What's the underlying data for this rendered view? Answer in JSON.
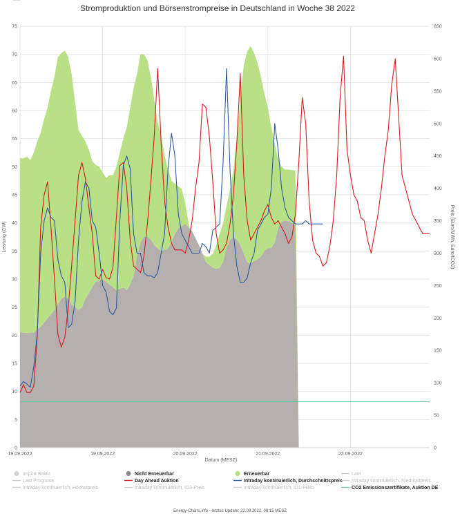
{
  "chart_data": {
    "type": "area",
    "title": "Stromproduktion und Börsenstrompreise in Deutschland in Woche 38 2022",
    "xlabel": "Datum (MESZ)",
    "ylabel_left": "Leistung (GW)",
    "ylabel_right": "Preis (Euro/MWh, Euro/tCO2)",
    "ylim_left": [
      0,
      75
    ],
    "ylim_right": [
      0,
      650
    ],
    "x_tick_labels": [
      "19.09.2022",
      "19.09.2022",
      "20.09.2022",
      "21.09.2022",
      "22.09.2022"
    ],
    "x_tick_hours": [
      0,
      24,
      48,
      72,
      96
    ],
    "y_left_ticks": [
      0,
      5,
      10,
      15,
      20,
      25,
      30,
      35,
      40,
      45,
      50,
      55,
      60,
      65,
      70,
      75
    ],
    "y_right_ticks": [
      0,
      50,
      100,
      150,
      200,
      250,
      300,
      350,
      400,
      450,
      500,
      550,
      600,
      650
    ],
    "x_range_hours": [
      0,
      119
    ],
    "legend_position": "bottom",
    "grid": true,
    "series": [
      {
        "name": "Nicht Erneuerbar",
        "kind": "area-stacked",
        "axis": "left",
        "color": "#b5afae",
        "x": [
          0,
          2,
          4,
          6,
          8,
          10,
          11,
          12,
          13,
          14,
          15,
          16,
          17,
          18,
          19,
          20,
          22,
          24,
          26,
          28,
          30,
          31,
          32,
          33,
          34,
          35,
          36,
          37,
          38,
          39,
          40,
          41,
          42,
          43,
          44,
          45,
          46,
          48,
          50,
          52,
          54,
          56,
          57,
          58,
          59,
          60,
          61,
          62,
          63,
          64,
          65,
          66,
          67,
          68,
          69,
          70,
          71,
          72,
          73,
          74,
          75,
          76,
          77,
          78,
          79,
          80,
          81,
          82,
          83,
          84,
          85,
          86,
          87,
          88,
          89
        ],
        "values": [
          20.5,
          20.4,
          20.5,
          21.5,
          23,
          24.5,
          25.5,
          26.5,
          26.8,
          26.5,
          25.5,
          25,
          24.5,
          25,
          26.5,
          27.5,
          29.5,
          30,
          29,
          28,
          28.5,
          28,
          29,
          30.5,
          34,
          36.5,
          37.5,
          37.5,
          37,
          36,
          35.5,
          35,
          35.2,
          35.5,
          36.5,
          38,
          39,
          39.8,
          38.5,
          36,
          33,
          32,
          31.8,
          32,
          33,
          35.5,
          37,
          37.5,
          37,
          36,
          34.5,
          33,
          32.8,
          33.2,
          33.5,
          34,
          35,
          35.5,
          35.5,
          36.5,
          39,
          40.2,
          40.4,
          40.3,
          40,
          39.5,
          0,
          0,
          0,
          0,
          0,
          0,
          0,
          0,
          0
        ],
        "value_note": "extends to x=88 then drops to 0 (forecast gap)"
      },
      {
        "name": "Erneuerbar",
        "kind": "area-stacked-top",
        "axis": "left",
        "color": "#b8e186",
        "x": [
          0,
          1,
          2,
          3,
          4,
          5,
          6,
          7,
          8,
          9,
          10,
          11,
          12,
          13,
          14,
          15,
          16,
          17,
          18,
          19,
          20,
          21,
          22,
          23,
          24,
          25,
          26,
          27,
          28,
          29,
          30,
          31,
          32,
          33,
          34,
          35,
          36,
          37,
          38,
          39,
          40,
          41,
          42,
          43,
          44,
          45,
          46,
          47,
          48,
          49,
          50,
          51,
          52,
          53,
          54,
          55,
          56,
          57,
          58,
          59,
          60,
          61,
          62,
          63,
          64,
          65,
          66,
          67,
          68,
          69,
          70,
          71,
          72,
          73,
          74,
          75,
          76,
          77,
          78,
          79,
          80,
          81,
          82,
          83,
          84,
          85,
          86,
          87,
          88,
          89
        ],
        "values": [
          51.5,
          51.5,
          51.8,
          51.2,
          52.5,
          54.5,
          56,
          58.5,
          60.5,
          63.5,
          66,
          69.5,
          70.2,
          70.7,
          69.5,
          66.5,
          61.5,
          56.5,
          55.5,
          54.5,
          53,
          51,
          50.3,
          50,
          49,
          48,
          48.5,
          48.5,
          50,
          52.5,
          55,
          57,
          60.5,
          64,
          66.5,
          70,
          70,
          69,
          66,
          62,
          58,
          55.5,
          52,
          49.5,
          47.5,
          47,
          46.5,
          46,
          43.5,
          40,
          37,
          35.5,
          35,
          34.5,
          34,
          34,
          34.5,
          36,
          38,
          40,
          43,
          46,
          49.5,
          55,
          62,
          68,
          70.5,
          71.5,
          70.2,
          68.5,
          66,
          63,
          60.5,
          57,
          54,
          51.5,
          50,
          49.5,
          49.5,
          49.4,
          49.3,
          0,
          0,
          0,
          0,
          0,
          0,
          0,
          0,
          0
        ]
      },
      {
        "name": "Day Ahead Auktion",
        "kind": "line",
        "axis": "right",
        "color": "#d7191c",
        "x": [
          0,
          1,
          2,
          3,
          4,
          5,
          6,
          7,
          8,
          9,
          10,
          11,
          12,
          13,
          14,
          15,
          16,
          17,
          18,
          19,
          20,
          21,
          22,
          23,
          24,
          25,
          26,
          27,
          28,
          29,
          30,
          31,
          32,
          33,
          34,
          35,
          36,
          37,
          38,
          39,
          40,
          41,
          42,
          43,
          44,
          45,
          46,
          47,
          48,
          49,
          50,
          51,
          52,
          53,
          54,
          55,
          56,
          57,
          58,
          59,
          60,
          61,
          62,
          63,
          64,
          65,
          66,
          67,
          68,
          69,
          70,
          71,
          72,
          73,
          74,
          75,
          76,
          77,
          78,
          79,
          80,
          81,
          82,
          83,
          84,
          85,
          86,
          87,
          88,
          89,
          90,
          91,
          92,
          93,
          94,
          95,
          96,
          97,
          98,
          99,
          100,
          101,
          102,
          103,
          104,
          105,
          106,
          107,
          108,
          109,
          110,
          111,
          112,
          113,
          114,
          115,
          116,
          117,
          118,
          119
        ],
        "values": [
          85,
          97,
          85,
          85,
          95,
          170,
          340,
          390,
          410,
          340,
          260,
          175,
          155,
          170,
          215,
          280,
          350,
          420,
          440,
          415,
          370,
          330,
          265,
          260,
          275,
          262,
          260,
          278,
          355,
          435,
          440,
          400,
          320,
          280,
          275,
          270,
          295,
          345,
          410,
          480,
          585,
          470,
          380,
          340,
          315,
          305,
          305,
          305,
          300,
          320,
          350,
          400,
          440,
          530,
          525,
          480,
          410,
          330,
          300,
          305,
          315,
          345,
          390,
          470,
          577,
          420,
          350,
          320,
          330,
          340,
          350,
          365,
          375,
          355,
          345,
          350,
          340,
          330,
          315,
          325,
          360,
          440,
          540,
          500,
          380,
          320,
          300,
          295,
          280,
          285,
          310,
          350,
          420,
          540,
          604,
          460,
          420,
          390,
          380,
          355,
          350,
          320,
          300,
          330,
          360,
          400,
          450,
          490,
          560,
          600,
          510,
          420,
          400,
          380,
          360,
          350,
          340,
          330,
          330,
          330
        ],
        "value_note": "hourly approximation read from chart"
      },
      {
        "name": "Intraday kontinuierlich, Durchschnittspreis",
        "kind": "line",
        "axis": "right",
        "color": "#2c5aa0",
        "x": [
          0,
          1,
          2,
          3,
          4,
          5,
          6,
          7,
          8,
          9,
          10,
          11,
          12,
          13,
          14,
          15,
          16,
          17,
          18,
          19,
          20,
          21,
          22,
          23,
          24,
          25,
          26,
          27,
          28,
          29,
          30,
          31,
          32,
          33,
          34,
          35,
          36,
          37,
          38,
          39,
          40,
          41,
          42,
          43,
          44,
          45,
          46,
          47,
          48,
          49,
          50,
          51,
          52,
          53,
          54,
          55,
          56,
          57,
          58,
          59,
          60,
          61,
          62,
          63,
          64,
          65,
          66,
          67,
          68,
          69,
          70,
          71,
          72,
          73,
          74,
          75,
          76,
          77,
          78,
          79,
          80,
          81,
          82,
          83,
          84,
          85,
          86,
          87,
          88
        ],
        "values": [
          95,
          102,
          98,
          93,
          125,
          175,
          300,
          350,
          370,
          355,
          350,
          290,
          265,
          255,
          185,
          190,
          225,
          320,
          380,
          410,
          400,
          350,
          340,
          300,
          250,
          240,
          210,
          205,
          215,
          350,
          435,
          450,
          430,
          330,
          300,
          300,
          270,
          265,
          265,
          262,
          270,
          300,
          330,
          430,
          485,
          450,
          360,
          330,
          320,
          310,
          300,
          300,
          300,
          315,
          310,
          300,
          335,
          340,
          345,
          440,
          585,
          430,
          330,
          280,
          255,
          255,
          262,
          285,
          300,
          335,
          345,
          355,
          360,
          400,
          500,
          460,
          400,
          370,
          355,
          350,
          345,
          345,
          345,
          350,
          345,
          345,
          345,
          345,
          345
        ]
      },
      {
        "name": "CO2 Emissionszertifikate, Auktion DE",
        "kind": "line",
        "axis": "right",
        "color": "#66c2a5",
        "x": [
          0,
          119
        ],
        "values": [
          71,
          71
        ]
      }
    ],
    "legend_entries": [
      {
        "label": "Import Saldo",
        "kind": "dot",
        "color": "#d0d0d0",
        "active": false
      },
      {
        "label": "Nicht Erneuerbar",
        "kind": "dot",
        "color": "#8c8c8c",
        "active": true
      },
      {
        "label": "Erneuerbar",
        "kind": "dot",
        "color": "#b8e186",
        "active": true
      },
      {
        "label": "Last",
        "kind": "line",
        "color": "#cccccc",
        "active": false
      },
      {
        "label": "Last Prognose",
        "kind": "line",
        "color": "#cccccc",
        "active": false
      },
      {
        "label": "Day Ahead Auktion",
        "kind": "line",
        "color": "#d7191c",
        "active": true
      },
      {
        "label": "Intraday kontinuierlich, Durchschnittspreis",
        "kind": "line",
        "color": "#2c5aa0",
        "active": true
      },
      {
        "label": "Intraday kontinuierlich, Niedrigstpreis",
        "kind": "line",
        "color": "#cccccc",
        "active": false
      },
      {
        "label": "Intraday kontinuierlich, Höchstpreis",
        "kind": "line",
        "color": "#cccccc",
        "active": false
      },
      {
        "label": "Intraday kontinuierlich, ID3-Preis",
        "kind": "line",
        "color": "#cccccc",
        "active": false
      },
      {
        "label": "Intraday kontinuierlich, ID1-Preis",
        "kind": "line",
        "color": "#cccccc",
        "active": false
      },
      {
        "label": "CO2 Emissionszertifikate, Auktion DE",
        "kind": "line",
        "color": "#66c2a5",
        "active": true
      },
      {
        "label": "CO2 Emissionszertifikate, Auktion EU",
        "kind": "line",
        "color": "#cccccc",
        "active": false
      }
    ],
    "footer": "Energy-Charts.info - letztes Update: 22.09.2022, 08:15 MESZ"
  }
}
